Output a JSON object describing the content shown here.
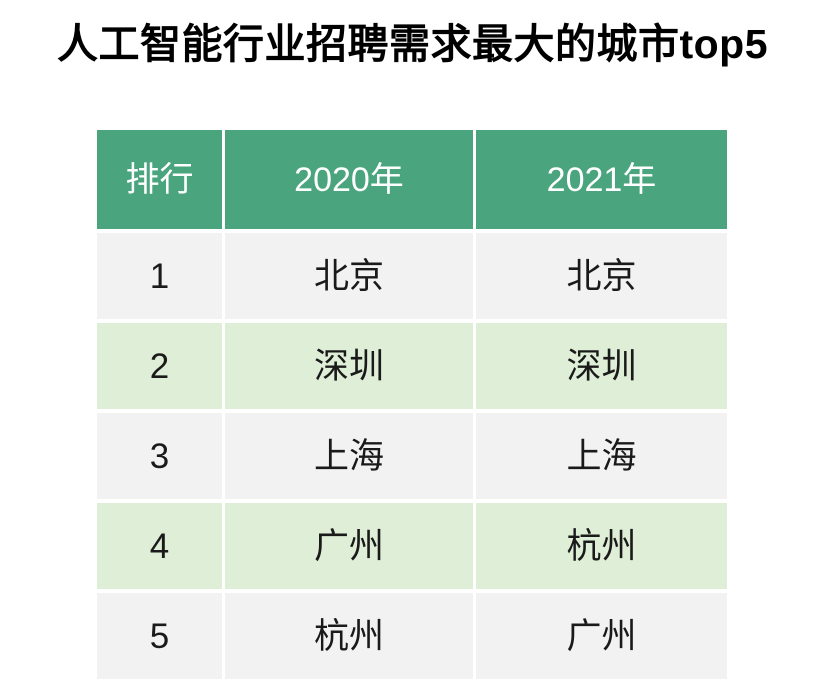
{
  "title": "人工智能行业招聘需求最大的城市top5",
  "chart_data": {
    "type": "table",
    "title": "人工智能行业招聘需求最大的城市top5",
    "columns": [
      "排行",
      "2020年",
      "2021年"
    ],
    "rows": [
      [
        "1",
        "北京",
        "北京"
      ],
      [
        "2",
        "深圳",
        "深圳"
      ],
      [
        "3",
        "上海",
        "上海"
      ],
      [
        "4",
        "广州",
        "杭州"
      ],
      [
        "5",
        "杭州",
        "广州"
      ]
    ],
    "layout_hints": {
      "header_style": "solid green band, white text",
      "row_striping": "odd rows light gray, even rows light green",
      "grid": "white gutters between all cells, no outer border"
    }
  },
  "colors": {
    "header_bg": "#4AA47E",
    "header_text": "#FFFFFF",
    "row_gray": "#F2F2F2",
    "row_green": "#DFEED6",
    "body_text": "#1A1A1A",
    "title_text": "#000000",
    "page_bg": "#FFFFFF"
  }
}
